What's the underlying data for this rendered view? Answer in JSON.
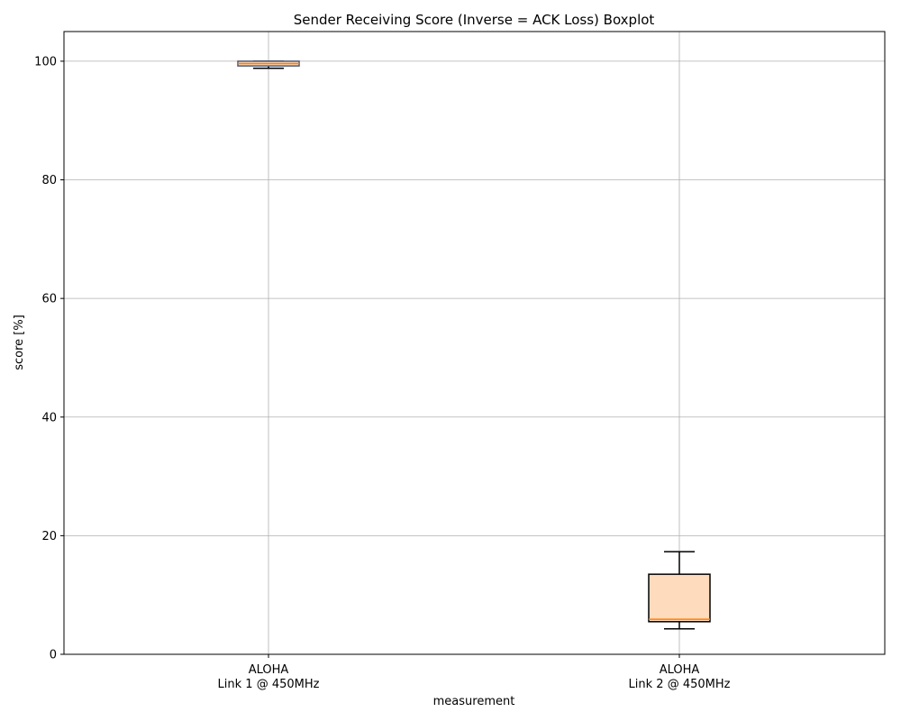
{
  "chart_data": {
    "type": "boxplot",
    "title": "Sender Receiving Score (Inverse = ACK Loss) Boxplot",
    "xlabel": "measurement",
    "ylabel": "score [%]",
    "ylim": [
      0,
      105
    ],
    "yticks": [
      0,
      20,
      40,
      60,
      80,
      100
    ],
    "grid": true,
    "categories": [
      [
        "ALOHA",
        "Link 1 @ 450MHz"
      ],
      [
        "ALOHA",
        "Link 2 @ 450MHz"
      ]
    ],
    "boxes": [
      {
        "whisker_low": 98.8,
        "q1": 99.2,
        "median": 99.6,
        "q3": 100.0,
        "whisker_high": 100.0,
        "fill": "#fddbbc",
        "border": "#4a5a7a"
      },
      {
        "whisker_low": 4.3,
        "q1": 5.5,
        "median": 5.9,
        "q3": 13.5,
        "whisker_high": 17.3,
        "fill": "#fddbbc",
        "border": "#000000"
      }
    ],
    "colors": {
      "median": "#ff7f0e",
      "grid": "#b0b0b0",
      "axes": "#000000"
    }
  }
}
